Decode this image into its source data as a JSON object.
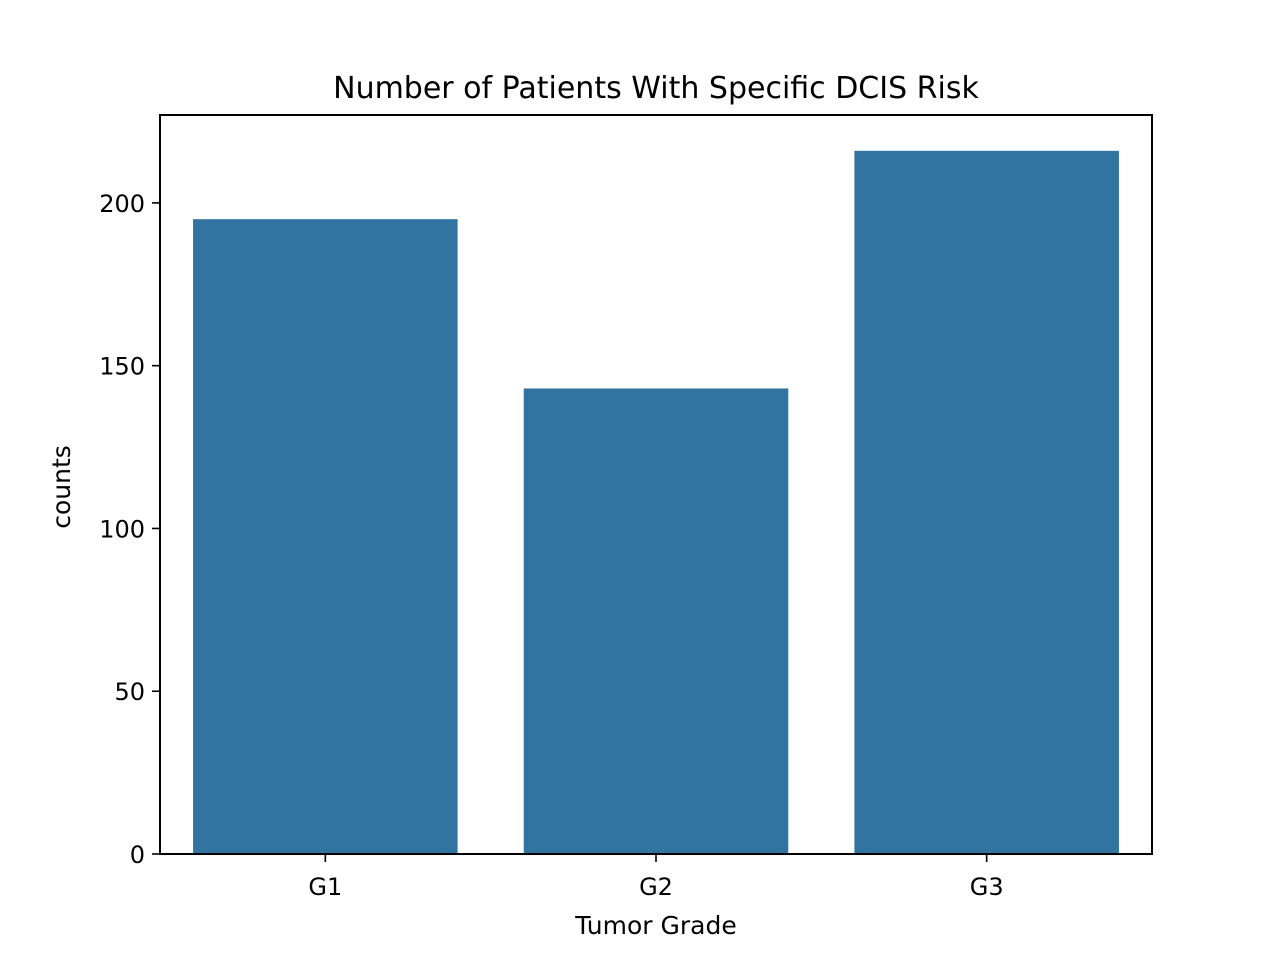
{
  "chart_data": {
    "type": "bar",
    "title": "Number of Patients With Specific DCIS Risk",
    "xlabel": "Tumor Grade",
    "ylabel": "counts",
    "categories": [
      "G1",
      "G2",
      "G3"
    ],
    "values": [
      195,
      143,
      216
    ],
    "ylim": [
      0,
      227
    ],
    "yticks": [
      0,
      50,
      100,
      150,
      200
    ],
    "grid": false,
    "legend": "none",
    "colors": {
      "bar": "#3274a1",
      "axis": "#000000",
      "background": "#ffffff"
    }
  }
}
